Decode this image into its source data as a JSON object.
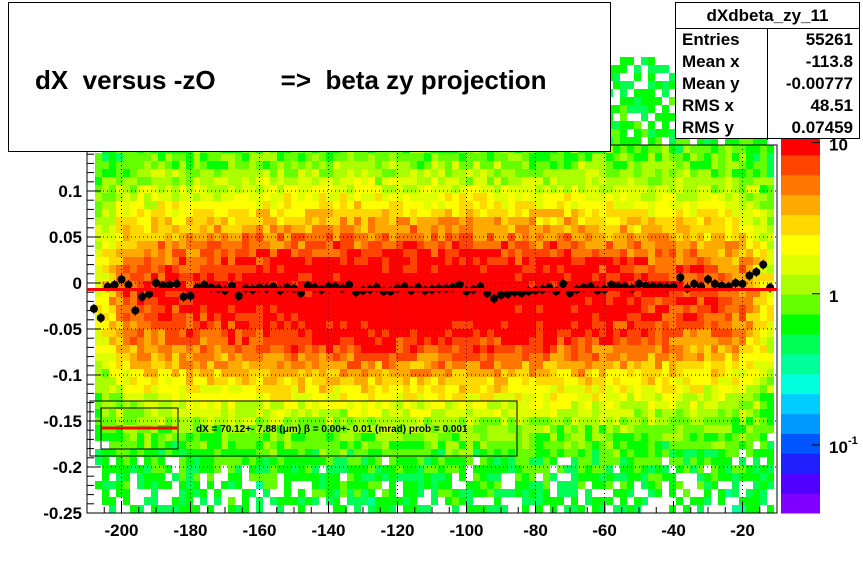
{
  "title": "dX  versus -zO         =>  beta zy projection",
  "stats": {
    "name": "dXdbeta_zy_11",
    "rows": [
      {
        "key": "Entries",
        "value": "55261"
      },
      {
        "key": "Mean x",
        "value": "-113.8"
      },
      {
        "key": "Mean y",
        "value": "-0.00777"
      },
      {
        "key": "RMS x",
        "value": "48.51"
      },
      {
        "key": "RMS y",
        "value": "0.07459"
      }
    ]
  },
  "legend": {
    "fit_text": "dX =   70.12+- 7.88 (μm) β =    0.00+- 0.01 (mrad) prob = 0.001"
  },
  "colors": {
    "fit_line": "#ff0000",
    "profile_points": "#000000",
    "palette": [
      "#7f00ff",
      "#5000ff",
      "#2020ff",
      "#0055ff",
      "#0099ff",
      "#00ccff",
      "#00ffdd",
      "#00ff99",
      "#00ff55",
      "#00ff00",
      "#66ff00",
      "#aaff00",
      "#ddff00",
      "#ffff00",
      "#ffd800",
      "#ffaa00",
      "#ff7700",
      "#ff4400",
      "#ff0000"
    ]
  },
  "chart_data": {
    "type": "heatmap",
    "title": "dX  versus -zO         =>  beta zy projection",
    "xlabel": "",
    "ylabel": "",
    "xlim": [
      -210,
      -10
    ],
    "ylim": [
      -0.25,
      0.15
    ],
    "x_ticks": [
      "-200",
      "-180",
      "-160",
      "-140",
      "-120",
      "-100",
      "-80",
      "-60",
      "-40",
      "-20"
    ],
    "x_tick_values": [
      -200,
      -180,
      -160,
      -140,
      -120,
      -100,
      -80,
      -60,
      -40,
      -20
    ],
    "y_ticks": [
      "-0.25",
      "-0.2",
      "-0.15",
      "-0.1",
      "-0.05",
      "0",
      "0.05",
      "0.1"
    ],
    "y_tick_values": [
      -0.25,
      -0.2,
      -0.15,
      -0.1,
      -0.05,
      0,
      0.05,
      0.1
    ],
    "colorbar": {
      "scale": "log",
      "ticks": [
        {
          "label": "10",
          "exp": "",
          "value": 10
        },
        {
          "label": "1",
          "exp": "",
          "value": 1
        },
        {
          "label": "10",
          "exp": "-1",
          "value": 0.1
        }
      ]
    },
    "grid": true,
    "profile": {
      "x": [
        -208,
        -206,
        -204,
        -202,
        -200,
        -198,
        -196,
        -194,
        -192,
        -190,
        -188,
        -186,
        -184,
        -182,
        -180,
        -178,
        -176,
        -174,
        -172,
        -170,
        -168,
        -166,
        -164,
        -162,
        -160,
        -158,
        -156,
        -154,
        -152,
        -150,
        -148,
        -146,
        -144,
        -142,
        -140,
        -138,
        -136,
        -134,
        -132,
        -130,
        -128,
        -126,
        -124,
        -122,
        -120,
        -118,
        -116,
        -114,
        -112,
        -110,
        -108,
        -106,
        -104,
        -102,
        -100,
        -98,
        -96,
        -94,
        -92,
        -90,
        -88,
        -86,
        -84,
        -82,
        -80,
        -78,
        -76,
        -74,
        -72,
        -70,
        -68,
        -66,
        -64,
        -62,
        -60,
        -58,
        -56,
        -54,
        -52,
        -50,
        -48,
        -46,
        -44,
        -42,
        -40,
        -38,
        -36,
        -34,
        -32,
        -30,
        -28,
        -26,
        -24,
        -22,
        -20,
        -18,
        -16,
        -14,
        -12
      ],
      "y": [
        -0.028,
        -0.038,
        -0.004,
        -0.002,
        0.004,
        -0.002,
        -0.03,
        -0.015,
        -0.012,
        0.0,
        -0.003,
        -0.002,
        -0.001,
        -0.015,
        -0.014,
        -0.005,
        -0.002,
        -0.005,
        -0.006,
        -0.008,
        -0.003,
        -0.014,
        -0.006,
        -0.007,
        -0.005,
        -0.006,
        -0.004,
        -0.008,
        -0.005,
        -0.006,
        -0.011,
        -0.003,
        -0.005,
        -0.007,
        -0.004,
        -0.004,
        -0.006,
        -0.002,
        -0.01,
        -0.008,
        -0.007,
        -0.005,
        -0.009,
        -0.009,
        -0.006,
        -0.004,
        -0.008,
        -0.005,
        -0.008,
        -0.007,
        -0.006,
        -0.006,
        -0.005,
        -0.002,
        -0.009,
        -0.007,
        -0.004,
        -0.011,
        -0.017,
        -0.013,
        -0.012,
        -0.01,
        -0.011,
        -0.009,
        -0.008,
        -0.007,
        -0.005,
        -0.009,
        -0.001,
        -0.011,
        -0.007,
        -0.005,
        -0.004,
        -0.008,
        -0.007,
        -0.002,
        -0.004,
        -0.004,
        -0.006,
        -0.001,
        -0.003,
        -0.004,
        -0.004,
        -0.005,
        -0.004,
        0.006,
        -0.006,
        -0.001,
        -0.004,
        0.004,
        -0.001,
        -0.003,
        -0.004,
        0.0,
        -0.001,
        0.008,
        0.012,
        0.02,
        -0.005
      ]
    },
    "fit_line": {
      "x": [
        -210,
        -10
      ],
      "y": [
        -0.007,
        -0.007
      ]
    }
  }
}
